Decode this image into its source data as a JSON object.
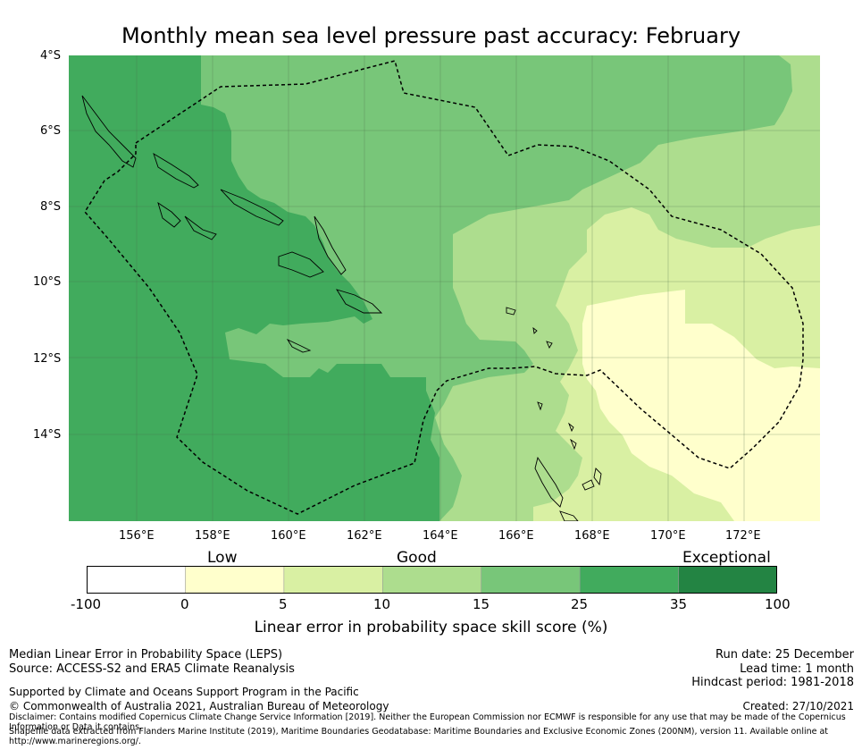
{
  "title": "Monthly mean sea level pressure past accuracy: February",
  "map": {
    "lat_labels": [
      "4°S",
      "6°S",
      "8°S",
      "10°S",
      "12°S",
      "14°S"
    ],
    "lon_labels": [
      "156°E",
      "158°E",
      "160°E",
      "162°E",
      "164°E",
      "166°E",
      "168°E",
      "170°E",
      "172°E"
    ],
    "extent": {
      "lon_min": 154.2,
      "lon_max": 174.0,
      "lat_min": -16.3,
      "lat_max": -4.0
    }
  },
  "colorbar": {
    "category_labels": [
      "Low",
      "Good",
      "Exceptional"
    ],
    "ticks": [
      "-100",
      "0",
      "5",
      "10",
      "15",
      "25",
      "35",
      "100"
    ],
    "colors": [
      "#ffffff",
      "#ffffcc",
      "#d9f0a3",
      "#addd8e",
      "#78c679",
      "#41ab5d",
      "#238443"
    ],
    "label": "Linear error in probability space skill score (%)"
  },
  "footer": {
    "left_line1": "Median Linear Error in Probability Space (LEPS)",
    "left_line2": "Source: ACCESS-S2 and ERA5 Climate Reanalysis",
    "support": "Supported by Climate and Oceans Support Program in the Pacific",
    "copyright": "© Commonwealth of Australia 2021, Australian Bureau of Meteorology",
    "disclaimer1": "Disclaimer: Contains modified Copernicus Climate Change Service Information [2019]. Neither the European Commission nor ECMWF is responsible for any use that may be made of the Copernicus Information or Data it contains.",
    "disclaimer2": "Shapefile data extracted from Flanders Marine Institute (2019), Maritime Boundaries Geodatabase: Maritime Boundaries and Exclusive Economic Zones (200NM), version 11. Available online at http://www.marineregions.org/.",
    "run_date": "Run date: 25 December",
    "lead_time": "Lead time: 1 month",
    "hindcast": "Hindcast period: 1981-2018",
    "created": "Created: 27/10/2021"
  }
}
